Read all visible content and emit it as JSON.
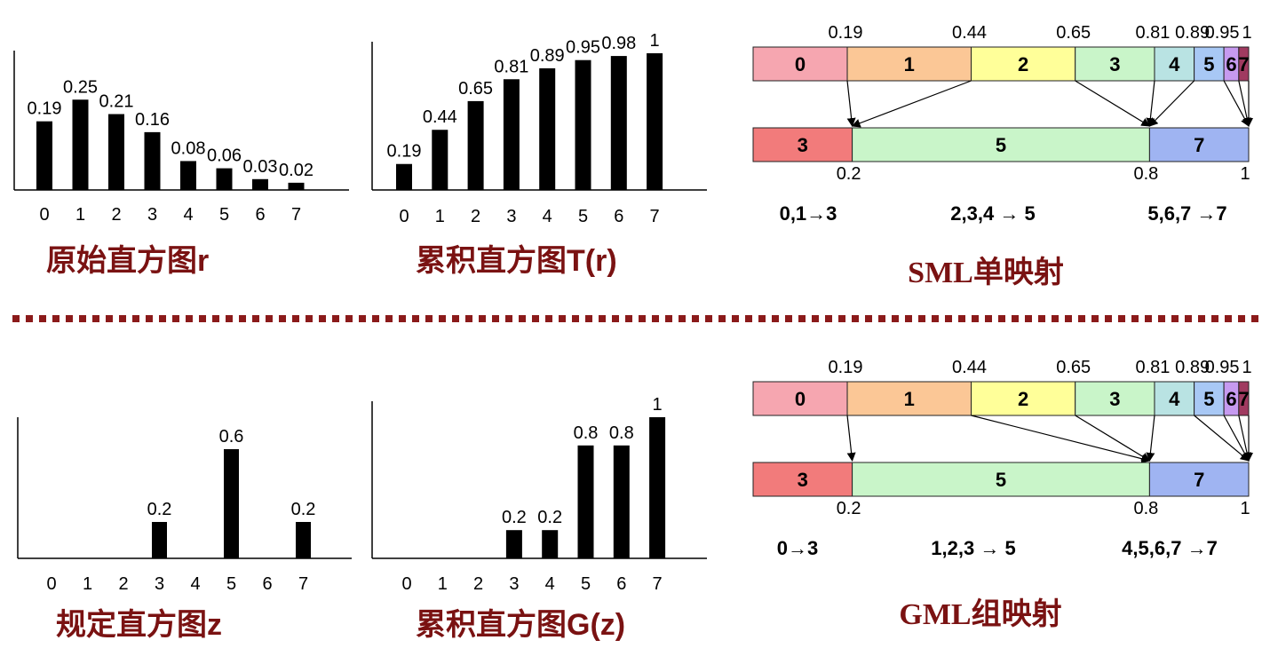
{
  "colors": {
    "title": "#7a1212",
    "divider": "#8b1a1a",
    "bar": "#000000",
    "seg": [
      "#f6a6b0",
      "#fbc796",
      "#ffff99",
      "#c9f5c9",
      "#b9e3e3",
      "#a8c8f5",
      "#c69af0",
      "#a03a60"
    ],
    "target": {
      "3": "#f27b7b",
      "5": "#c9f5c9",
      "7": "#9fb4f2"
    }
  },
  "chart_data": [
    {
      "type": "bar",
      "title": "原始直方图r",
      "categories": [
        "0",
        "1",
        "2",
        "3",
        "4",
        "5",
        "6",
        "7"
      ],
      "values": [
        0.19,
        0.25,
        0.21,
        0.16,
        0.08,
        0.06,
        0.03,
        0.02
      ],
      "value_labels": [
        "0.19",
        "0.25",
        "0.21",
        "0.16",
        "0.08",
        "0.06",
        "0.03",
        "0.02"
      ],
      "ylim": [
        0,
        0.3
      ]
    },
    {
      "type": "bar",
      "title": "累积直方图T(r)",
      "categories": [
        "0",
        "1",
        "2",
        "3",
        "4",
        "5",
        "6",
        "7"
      ],
      "values": [
        0.19,
        0.44,
        0.65,
        0.81,
        0.89,
        0.95,
        0.98,
        1
      ],
      "value_labels": [
        "0.19",
        "0.44",
        "0.65",
        "0.81",
        "0.89",
        "0.95",
        "0.98",
        "1"
      ],
      "ylim": [
        0,
        1.1
      ]
    },
    {
      "type": "bar",
      "title": "规定直方图z",
      "categories": [
        "0",
        "1",
        "2",
        "3",
        "4",
        "5",
        "6",
        "7"
      ],
      "values": [
        0,
        0,
        0,
        0.2,
        0,
        0.6,
        0,
        0.2
      ],
      "value_labels": [
        "",
        "",
        "",
        "0.2",
        "",
        "0.6",
        "",
        "0.2"
      ],
      "ylim": [
        0,
        0.8
      ]
    },
    {
      "type": "bar",
      "title": "累积直方图G(z)",
      "categories": [
        "0",
        "1",
        "2",
        "3",
        "4",
        "5",
        "6",
        "7"
      ],
      "values": [
        0,
        0,
        0,
        0.2,
        0.2,
        0.8,
        0.8,
        1
      ],
      "value_labels": [
        "",
        "",
        "",
        "0.2",
        "0.2",
        "0.8",
        "0.8",
        "1"
      ],
      "ylim": [
        0,
        1.1
      ]
    }
  ],
  "sml": {
    "title": "SML单映射",
    "source": {
      "labels": [
        "0",
        "1",
        "2",
        "3",
        "4",
        "5",
        "6",
        "7"
      ],
      "bounds": [
        0,
        0.19,
        0.44,
        0.65,
        0.81,
        0.89,
        0.95,
        0.98,
        1
      ],
      "bound_labels": [
        "0.19",
        "0.44",
        "0.65",
        "0.81",
        "0.89",
        "0.95",
        "1"
      ]
    },
    "target": {
      "labels": [
        "3",
        "5",
        "7"
      ],
      "bounds": [
        0,
        0.2,
        0.8,
        1
      ],
      "bound_labels": [
        "0.2",
        "0.8",
        "1"
      ]
    },
    "arrows": [
      [
        0,
        0
      ],
      [
        1,
        0
      ],
      [
        2,
        1
      ],
      [
        3,
        1
      ],
      [
        4,
        1
      ],
      [
        5,
        2
      ],
      [
        6,
        2
      ],
      [
        7,
        2
      ]
    ],
    "mappings": [
      "0,1→3",
      "2,3,4 → 5",
      "5,6,7 →7"
    ]
  },
  "gml": {
    "title": "GML组映射",
    "source": {
      "labels": [
        "0",
        "1",
        "2",
        "3",
        "4",
        "5",
        "6",
        "7"
      ],
      "bounds": [
        0,
        0.19,
        0.44,
        0.65,
        0.81,
        0.89,
        0.95,
        0.98,
        1
      ],
      "bound_labels": [
        "0.19",
        "0.44",
        "0.65",
        "0.81",
        "0.89",
        "0.95",
        "1"
      ]
    },
    "target": {
      "labels": [
        "3",
        "5",
        "7"
      ],
      "bounds": [
        0,
        0.2,
        0.8,
        1
      ],
      "bound_labels": [
        "0.2",
        "0.8",
        "1"
      ]
    },
    "arrows": [
      [
        0,
        0
      ],
      [
        1,
        1
      ],
      [
        2,
        1
      ],
      [
        3,
        1
      ],
      [
        4,
        2
      ],
      [
        5,
        2
      ],
      [
        6,
        2
      ],
      [
        7,
        2
      ]
    ],
    "mappings": [
      "0→3",
      "1,2,3 → 5",
      "4,5,6,7 →7"
    ]
  }
}
